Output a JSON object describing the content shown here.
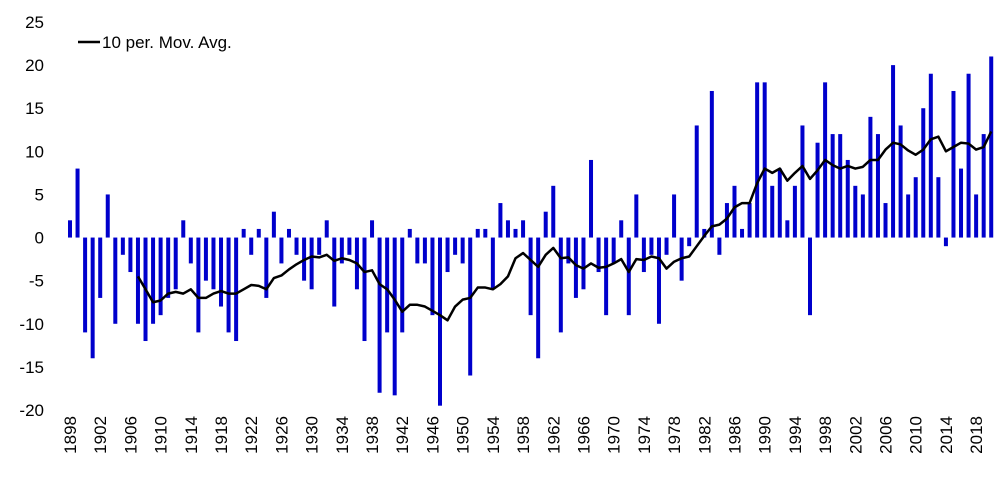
{
  "chart_data": {
    "type": "bar-line",
    "legend": "top-left",
    "x": [
      1898,
      1899,
      1900,
      1901,
      1902,
      1903,
      1904,
      1905,
      1906,
      1907,
      1908,
      1909,
      1910,
      1911,
      1912,
      1913,
      1914,
      1915,
      1916,
      1917,
      1918,
      1919,
      1920,
      1921,
      1922,
      1923,
      1924,
      1925,
      1926,
      1927,
      1928,
      1929,
      1930,
      1931,
      1932,
      1933,
      1934,
      1935,
      1936,
      1937,
      1938,
      1939,
      1940,
      1941,
      1942,
      1943,
      1944,
      1945,
      1946,
      1947,
      1948,
      1949,
      1950,
      1951,
      1952,
      1953,
      1954,
      1955,
      1956,
      1957,
      1958,
      1959,
      1960,
      1961,
      1962,
      1963,
      1964,
      1965,
      1966,
      1967,
      1968,
      1969,
      1970,
      1971,
      1972,
      1973,
      1974,
      1975,
      1976,
      1977,
      1978,
      1979,
      1980,
      1981,
      1982,
      1983,
      1984,
      1985,
      1986,
      1987,
      1988,
      1989,
      1990,
      1991,
      1992,
      1993,
      1994,
      1995,
      1996,
      1997,
      1998,
      1999,
      2000,
      2001,
      2002,
      2003,
      2004,
      2005,
      2006,
      2007,
      2008,
      2009,
      2010,
      2011,
      2012,
      2013,
      2014,
      2015,
      2016,
      2017,
      2018,
      2019,
      2020
    ],
    "xlim": [
      1897,
      2020.5
    ],
    "xticks": [
      1898,
      1902,
      1906,
      1910,
      1914,
      1918,
      1922,
      1926,
      1930,
      1934,
      1938,
      1942,
      1946,
      1950,
      1954,
      1958,
      1962,
      1966,
      1970,
      1974,
      1978,
      1982,
      1986,
      1990,
      1994,
      1998,
      2002,
      2006,
      2010,
      2014,
      2018
    ],
    "ylim": [
      -20,
      25
    ],
    "yticks": [
      -20,
      -15,
      -10,
      -5,
      0,
      5,
      10,
      15,
      20,
      25
    ],
    "series": [
      {
        "type": "bar",
        "color": "#0000cc",
        "values": [
          2,
          8,
          -11,
          -14,
          -7,
          5,
          -10,
          -2,
          -4,
          -10,
          -12,
          -10,
          -9,
          -7,
          -6,
          2,
          -3,
          -11,
          -5,
          -6,
          -8,
          -11,
          -12,
          1,
          -2,
          1,
          -7,
          3,
          -3,
          1,
          -2,
          -5,
          -6,
          -2,
          2,
          -8,
          -3,
          -2,
          -6,
          -12,
          2,
          -18,
          -11,
          -18.3,
          -11,
          1,
          -3,
          -3,
          -9,
          -19.5,
          -4,
          -2,
          -3,
          -16,
          1,
          1,
          -6,
          4,
          2,
          1,
          2,
          -9,
          -14,
          3,
          6,
          -11,
          -3,
          -7,
          -6,
          9,
          -4,
          -9,
          -3,
          2,
          -9,
          5,
          -4,
          -2,
          -10,
          -2,
          5,
          -5,
          -1,
          13,
          1,
          17,
          -2,
          4,
          6,
          1,
          4,
          18,
          18,
          6,
          8,
          2,
          6,
          13,
          -9,
          11,
          18,
          12,
          12,
          9,
          6,
          5,
          14,
          12,
          4,
          20,
          13,
          5,
          7,
          15,
          19,
          7,
          -1,
          17,
          8,
          19,
          5,
          12,
          21
        ]
      },
      {
        "type": "line",
        "name": "10 per. Mov. Avg.",
        "color": "#000000",
        "values": [
          null,
          null,
          null,
          null,
          null,
          null,
          null,
          null,
          null,
          -4.5,
          -6,
          -7.5,
          -7.3,
          -6.5,
          -6.3,
          -6.5,
          -6,
          -7,
          -7,
          -6.5,
          -6.2,
          -6.5,
          -6.5,
          -6,
          -5.5,
          -5.6,
          -6,
          -4.7,
          -4.4,
          -3.7,
          -3.1,
          -2.6,
          -2.2,
          -2.3,
          -2,
          -2.7,
          -2.4,
          -2.6,
          -3,
          -4,
          -3.8,
          -5.4,
          -6,
          -7.2,
          -8.6,
          -7.8,
          -7.8,
          -8,
          -8.5,
          -9,
          -9.6,
          -8,
          -7.2,
          -7,
          -5.8,
          -5.8,
          -6,
          -5.4,
          -4.5,
          -2.4,
          -1.8,
          -2.6,
          -3.4,
          -2,
          -1.2,
          -2.4,
          -2.3,
          -3.2,
          -3.6,
          -3,
          -3.5,
          -3.4,
          -3,
          -2.5,
          -4,
          -2.5,
          -2.6,
          -2.2,
          -2.4,
          -3.6,
          -2.8,
          -2.4,
          -2.2,
          -1,
          0.2,
          1.3,
          1.5,
          2.2,
          3.5,
          4,
          4,
          6.3,
          8,
          7.5,
          8,
          6.6,
          7.5,
          8.3,
          6.8,
          7.8,
          9,
          8.4,
          8,
          8.3,
          8,
          8.2,
          9,
          9,
          10.2,
          11,
          10.8,
          10.1,
          9.6,
          10.2,
          11.4,
          11.7,
          10,
          10.5,
          11,
          10.9,
          10.2,
          10.5,
          12.3
        ]
      }
    ]
  }
}
